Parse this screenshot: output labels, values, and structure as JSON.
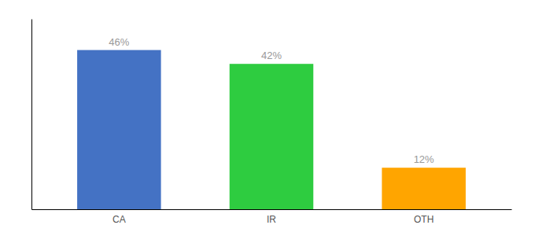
{
  "chart_data": {
    "type": "bar",
    "categories": [
      "CA",
      "IR",
      "OTH"
    ],
    "values": [
      46,
      42,
      12
    ],
    "value_labels": [
      "46%",
      "42%",
      "12%"
    ],
    "colors": [
      "#4472C4",
      "#2ECC40",
      "#FFA500"
    ],
    "ylim": [
      0,
      55
    ],
    "tick_labels": "x",
    "grid": false
  }
}
